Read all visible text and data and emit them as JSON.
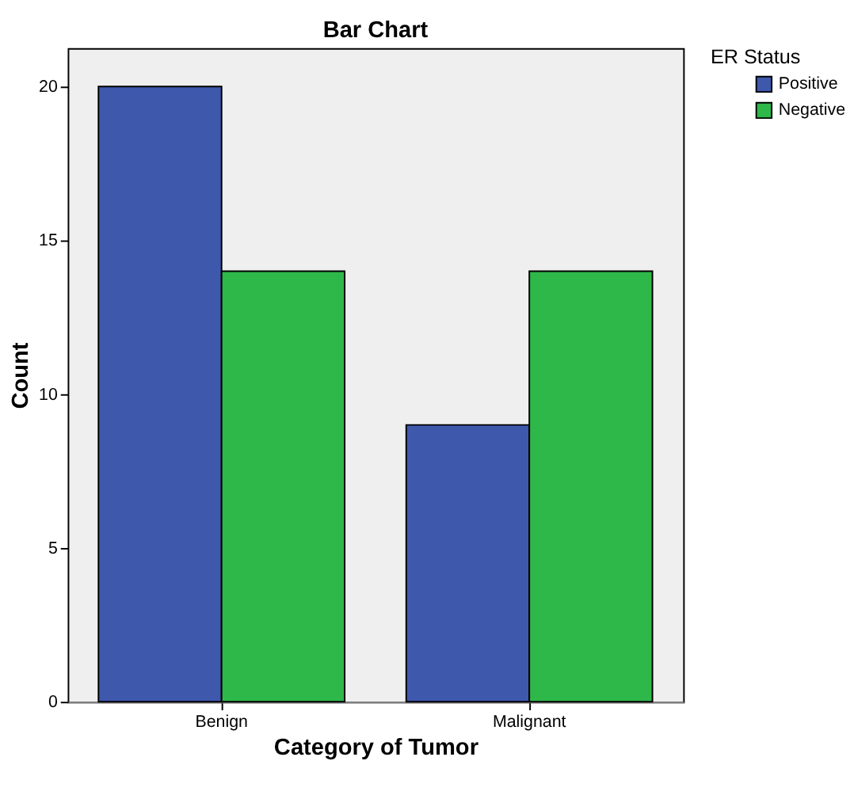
{
  "chart_data": {
    "type": "bar",
    "title": "Bar Chart",
    "xlabel": "Category of Tumor",
    "ylabel": "Count",
    "legend_title": "ER Status",
    "categories": [
      "Benign",
      "Malignant"
    ],
    "series": [
      {
        "name": "Positive",
        "color": "#3e58ac",
        "values": [
          20,
          9
        ]
      },
      {
        "name": "Negative",
        "color": "#2fb84a",
        "values": [
          14,
          14
        ]
      }
    ],
    "ylim": [
      0,
      21.25
    ],
    "yticks": [
      0,
      5,
      10,
      15,
      20
    ],
    "grid": false,
    "legend": "top right"
  }
}
